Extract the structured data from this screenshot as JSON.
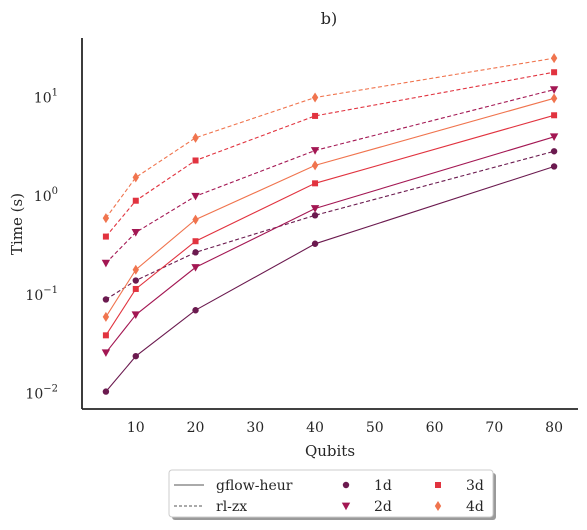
{
  "chart_data": {
    "type": "line",
    "title": "b)",
    "xlabel": "Qubits",
    "ylabel": "Time (s)",
    "yscale": "log",
    "xlim": [
      1,
      84
    ],
    "ylim": [
      0.007,
      40
    ],
    "xticks": [
      10,
      20,
      30,
      40,
      50,
      60,
      70,
      80
    ],
    "yticks": [
      {
        "value": 0.01,
        "base": "10",
        "exp": "−2"
      },
      {
        "value": 0.1,
        "base": "10",
        "exp": "−1"
      },
      {
        "value": 1,
        "base": "10",
        "exp": "0"
      },
      {
        "value": 10,
        "base": "10",
        "exp": "1"
      }
    ],
    "x": [
      5,
      10,
      20,
      40,
      80
    ],
    "grid": false,
    "legend_position": "bottom-center",
    "colors": {
      "1d": "#6b1a4f",
      "2d": "#a31753",
      "3d": "#e1333f",
      "4d": "#f0744e"
    },
    "series": [
      {
        "method": "gflow-heur",
        "name": "1d",
        "values": [
          0.0105,
          0.024,
          0.07,
          0.33,
          2.0
        ]
      },
      {
        "method": "gflow-heur",
        "name": "2d",
        "values": [
          0.026,
          0.063,
          0.19,
          0.75,
          4.0
        ]
      },
      {
        "method": "gflow-heur",
        "name": "3d",
        "values": [
          0.039,
          0.115,
          0.35,
          1.35,
          6.6
        ]
      },
      {
        "method": "gflow-heur",
        "name": "4d",
        "values": [
          0.06,
          0.18,
          0.58,
          2.05,
          9.8
        ]
      },
      {
        "method": "rl-zx",
        "name": "1d",
        "values": [
          0.09,
          0.14,
          0.27,
          0.64,
          2.85
        ]
      },
      {
        "method": "rl-zx",
        "name": "2d",
        "values": [
          0.21,
          0.43,
          1.0,
          2.9,
          12.0
        ]
      },
      {
        "method": "rl-zx",
        "name": "3d",
        "values": [
          0.39,
          0.9,
          2.3,
          6.5,
          18.0
        ]
      },
      {
        "method": "rl-zx",
        "name": "4d",
        "values": [
          0.6,
          1.55,
          3.9,
          10.0,
          25.0
        ]
      }
    ],
    "legend": {
      "methods": [
        {
          "label": "gflow-heur",
          "style": "solid"
        },
        {
          "label": "rl-zx",
          "style": "dashed"
        }
      ],
      "dims": [
        {
          "label": "1d",
          "marker": "circle"
        },
        {
          "label": "2d",
          "marker": "triangle-down"
        },
        {
          "label": "3d",
          "marker": "square"
        },
        {
          "label": "4d",
          "marker": "diamond"
        }
      ]
    }
  }
}
